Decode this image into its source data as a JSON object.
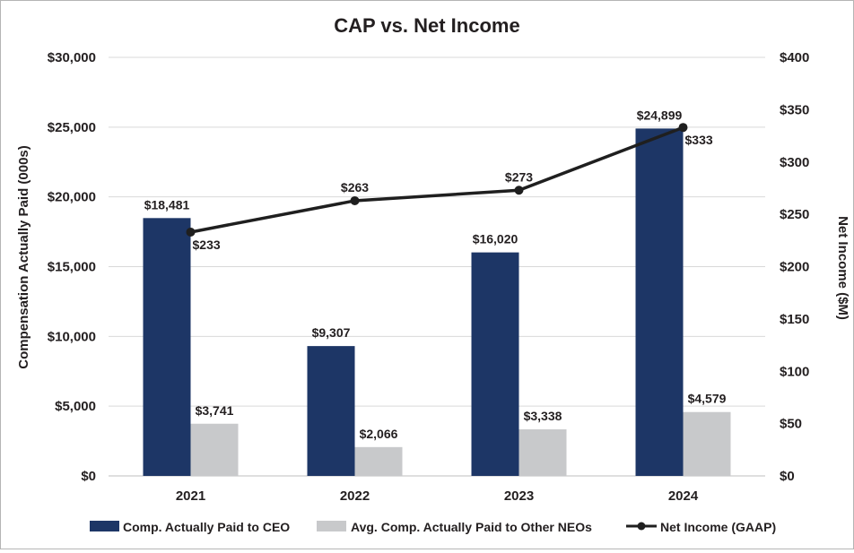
{
  "chart_data": {
    "type": "bar",
    "title": "CAP vs. Net Income",
    "categories": [
      "2021",
      "2022",
      "2023",
      "2024"
    ],
    "series": [
      {
        "name": "Comp. Actually Paid to CEO",
        "axis": "left",
        "kind": "bar",
        "color": "#1d3666",
        "values": [
          18481,
          9307,
          16020,
          24899
        ],
        "labels": [
          "$18,481",
          "$9,307",
          "$16,020",
          "$24,899"
        ]
      },
      {
        "name": "Avg. Comp. Actually Paid to Other NEOs",
        "axis": "left",
        "kind": "bar",
        "color": "#c8c9cb",
        "values": [
          3741,
          2066,
          3338,
          4579
        ],
        "labels": [
          "$3,741",
          "$2,066",
          "$3,338",
          "$4,579"
        ]
      },
      {
        "name": "Net Income (GAAP)",
        "axis": "right",
        "kind": "line",
        "color": "#1f1f1f",
        "values": [
          233,
          263,
          273,
          333
        ],
        "labels": [
          "$233",
          "$263",
          "$273",
          "$333"
        ]
      }
    ],
    "y_left": {
      "label": "Compensation Actually Paid (000s)",
      "ylim": [
        0,
        30000
      ],
      "ticks": [
        0,
        5000,
        10000,
        15000,
        20000,
        25000,
        30000
      ],
      "tick_labels": [
        "$0",
        "$5,000",
        "$10,000",
        "$15,000",
        "$20,000",
        "$25,000",
        "$30,000"
      ]
    },
    "y_right": {
      "label": "Net Income ($M)",
      "ylim": [
        0,
        400
      ],
      "ticks": [
        0,
        50,
        100,
        150,
        200,
        250,
        300,
        350,
        400
      ],
      "tick_labels": [
        "$0",
        "$50",
        "$100",
        "$150",
        "$200",
        "$250",
        "$300",
        "$350",
        "$400"
      ]
    },
    "grid": true,
    "legend_position": "bottom"
  }
}
